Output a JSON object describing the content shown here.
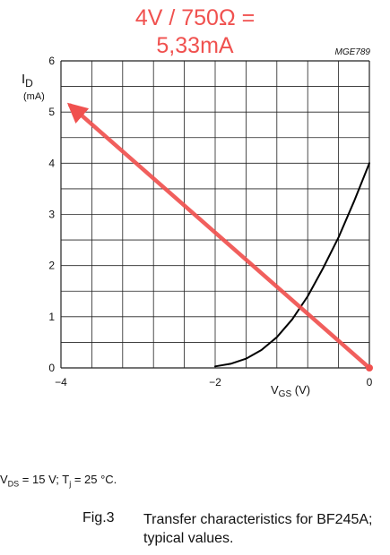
{
  "annotation": {
    "line1": "4V / 750Ω =",
    "line2": "5,33mA",
    "color": "#f0514f"
  },
  "figure_code": "MGE789",
  "conditions": {
    "vds_prefix": "V",
    "vds_sub": "DS",
    "vds_rest": " = 15 V; T",
    "tj_sub": "j",
    "tj_rest": " = 25 °C."
  },
  "caption": {
    "number": "Fig.3",
    "text_line1": "Transfer characteristics for BF245A;",
    "text_line2": "typical values."
  },
  "chart_data": {
    "type": "line",
    "ylabel_main": "I",
    "ylabel_sub": "D",
    "yunit": "(mA)",
    "xlabel_main": "V",
    "xlabel_sub": "GS",
    "xunit": " (V)",
    "xlim": [
      -4,
      0
    ],
    "ylim": [
      0,
      6
    ],
    "x_ticks": [
      {
        "v": -4,
        "label": "−4"
      },
      {
        "v": -2,
        "label": "−2"
      },
      {
        "v": 0,
        "label": "0"
      }
    ],
    "y_ticks": [
      0,
      1,
      2,
      3,
      4,
      5,
      6
    ],
    "grid_x_step": 0.4,
    "grid_y_step": 0.5,
    "grid": true,
    "series": [
      {
        "points": [
          [
            -2.0,
            0.03
          ],
          [
            -1.8,
            0.08
          ],
          [
            -1.6,
            0.18
          ],
          [
            -1.4,
            0.35
          ],
          [
            -1.2,
            0.6
          ],
          [
            -1.0,
            0.95
          ],
          [
            -0.8,
            1.4
          ],
          [
            -0.6,
            1.95
          ],
          [
            -0.4,
            2.55
          ],
          [
            -0.2,
            3.25
          ],
          [
            0.0,
            4.0
          ]
        ],
        "color": "#000000"
      },
      {
        "points": [
          [
            0.0,
            0.0
          ],
          [
            -3.88,
            5.13
          ]
        ],
        "color": "#f0514f",
        "arrow": true
      }
    ]
  }
}
